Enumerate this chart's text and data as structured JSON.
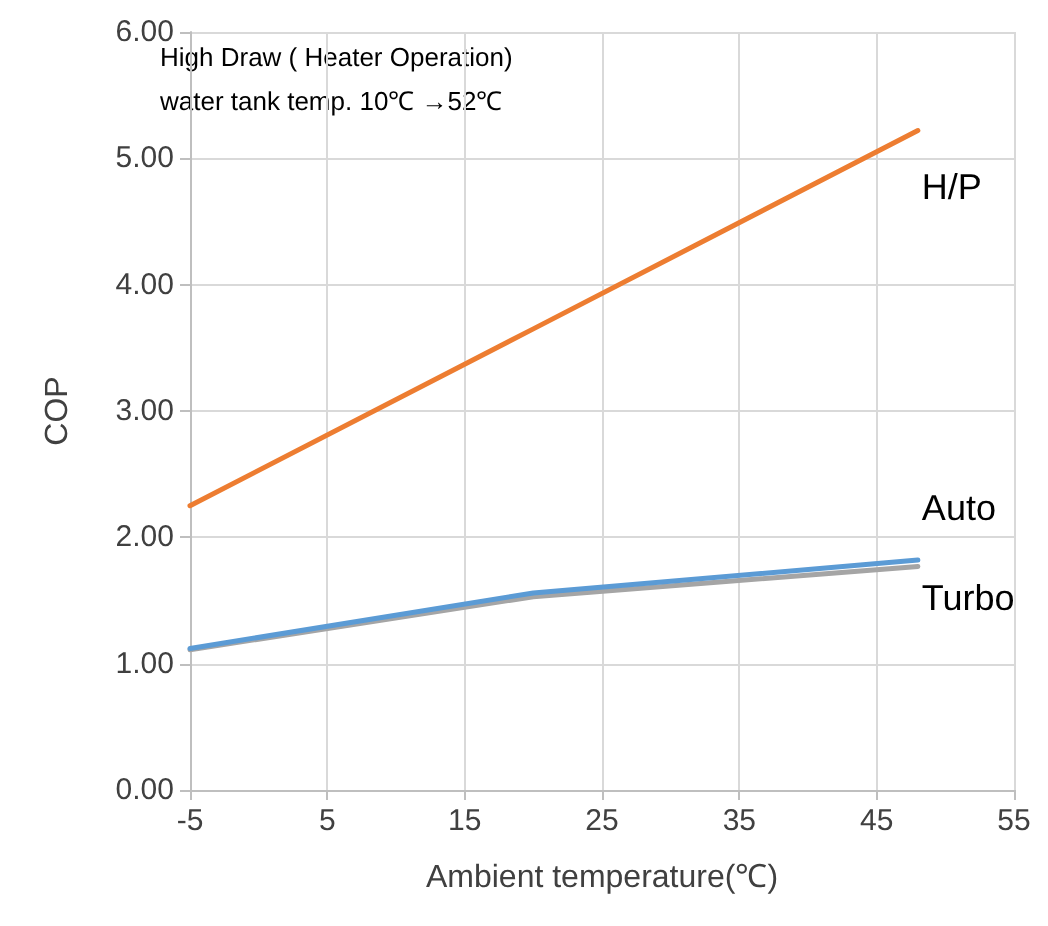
{
  "chart_data": {
    "type": "line",
    "xlabel": "Ambient temperature(℃)",
    "ylabel": "COP",
    "annotations": [
      "High Draw ( Heater Operation)",
      "water tank temp. 10℃ →52℃"
    ],
    "series": [
      {
        "name": "H/P",
        "color": "#ed7d31",
        "x": [
          -5,
          20,
          48
        ],
        "values": [
          2.25,
          3.65,
          5.22
        ]
      },
      {
        "name": "Auto",
        "color": "#5b9bd5",
        "x": [
          -5,
          20,
          48
        ],
        "values": [
          1.12,
          1.56,
          1.82
        ]
      },
      {
        "name": "Turbo",
        "color": "#a5a5a5",
        "x": [
          -5,
          20,
          48
        ],
        "values": [
          1.11,
          1.53,
          1.77
        ]
      }
    ],
    "xlim": [
      -5,
      55
    ],
    "xticks": [
      -5,
      5,
      15,
      25,
      35,
      45,
      55
    ],
    "ylim": [
      0,
      6
    ],
    "yticks": [
      {
        "value": 0,
        "label": "0.00"
      },
      {
        "value": 1,
        "label": "1.00"
      },
      {
        "value": 2,
        "label": "2.00"
      },
      {
        "value": 3,
        "label": "3.00"
      },
      {
        "value": 4,
        "label": "4.00"
      },
      {
        "value": 5,
        "label": "5.00"
      },
      {
        "value": 6,
        "label": "6.00"
      }
    ],
    "grid": true,
    "marker": "none",
    "line_style": "solid",
    "legend": false
  }
}
